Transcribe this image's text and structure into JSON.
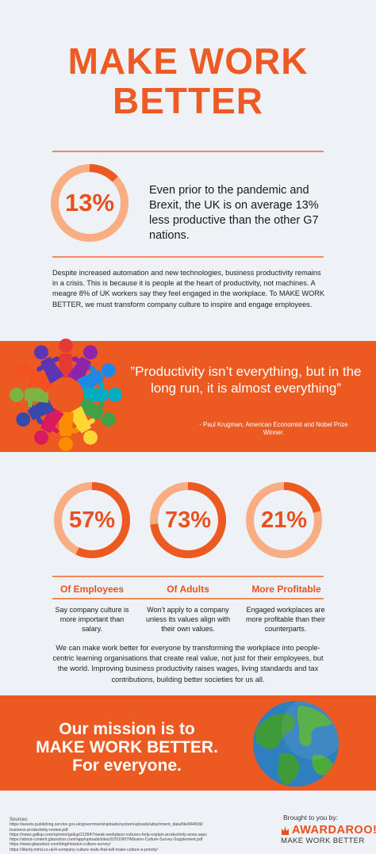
{
  "header": {
    "title_line1": "MAKE  WORK",
    "title_line2": "BETTER"
  },
  "intro_stat": {
    "value_label": "13%",
    "percent": 13,
    "text": "Even prior to the pandemic and Brexit, the UK is on average 13% less productive than the other G7 nations."
  },
  "intro_paragraph": "Despite increased automation and new technologies, business productivity remains in a crisis. This is because it is people at the heart of productivity, not machines. A meagre 8% of UK workers say they feel engaged in the workplace. To MAKE WORK BETTER, we must transform company culture to inspire and engage employees.",
  "quote": {
    "text": "”Productivity isn’t everything, but in the long run, it is almost everything”",
    "attribution": "- Paul Krugman, American Economist and Nobel Prize Winner."
  },
  "stats": [
    {
      "value_label": "57%",
      "percent": 57,
      "label": "Of Employees",
      "desc": "Say company culture is more important than salary."
    },
    {
      "value_label": "73%",
      "percent": 73,
      "label": "Of Adults",
      "desc": "Won’t apply to a company unless its values align with their own values."
    },
    {
      "value_label": "21%",
      "percent": 21,
      "label": "More Profitable",
      "desc": "Engaged workplaces are more profitable than their counterparts."
    }
  ],
  "closing_paragraph": "We can make work better for everyone by transforming the workplace into people-centric learning organisations that create real value, not just for their employees, but the world. Improving business productivity raises wages, living standards and tax contributions, building better societies for us all.",
  "mission": {
    "line1": "Our mission is to",
    "line2": "MAKE WORK BETTER.",
    "line3": "For everyone."
  },
  "footer": {
    "sources_label": "Sources:",
    "sources": [
      "https://assets.publishing.service.gov.uk/government/uploads/system/uploads/attachment_data/file/844506/",
      "business-productivity-review.pdf",
      "https://news.gallup.com/opinion/gallup/219947/weak-workplace-cultures-help-explain-productivity-woes.aspx",
      "https://about-content.glassdoor.com//app/uploads/sites/2/2019/07/Mission-Culture-Survey-Supplement.pdf",
      "https://www.glassdoor.com/blog/mission-culture-survey/",
      "https://liberty.mind.co.uk/4-company-culture-stats-that-will-make-culture-a-priority/"
    ],
    "brought_by": "Brought to you by:",
    "logo_name": "AWARDAROO!",
    "logo_tagline": "MAKE WORK BETTER"
  },
  "colors": {
    "accent": "#ec5a21",
    "ring_track": "#f8ad82",
    "ring_fill": "#ec5a21",
    "background": "#eef1f5"
  },
  "icons": {
    "people_circle": "people-circle-icon",
    "globe": "globe-icon"
  }
}
